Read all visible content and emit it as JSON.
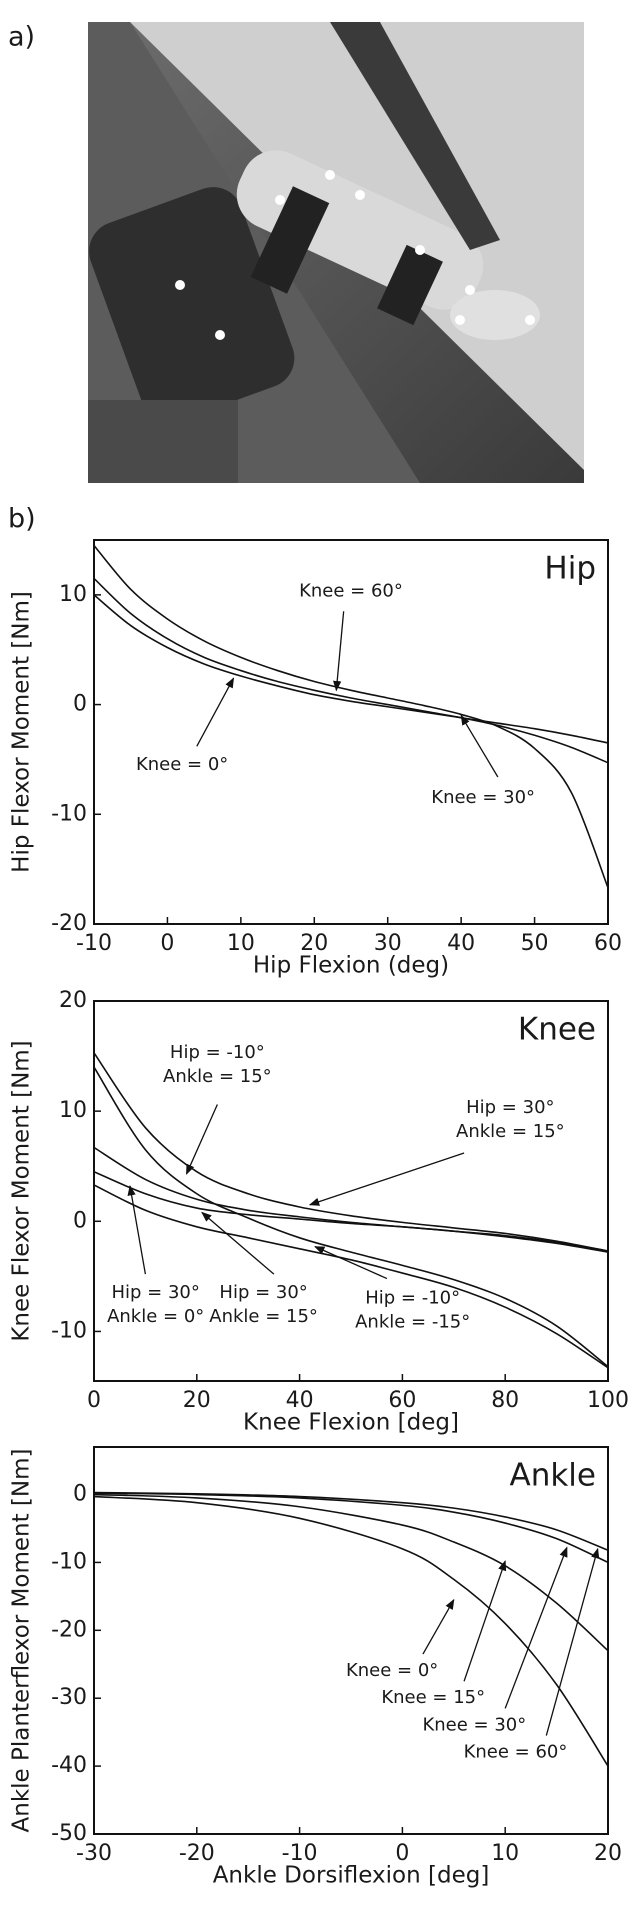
{
  "panel_labels": [
    "a)",
    "b)"
  ],
  "chart_data": [
    {
      "type": "line",
      "title": "Hip",
      "xlabel": "Hip Flexion (deg)",
      "ylabel": "Hip Flexor Moment [Nm]",
      "xlim": [
        -10,
        60
      ],
      "ylim": [
        -20,
        15
      ],
      "xticks": [
        -10,
        0,
        10,
        20,
        30,
        40,
        50,
        60
      ],
      "yticks": [
        -20,
        -10,
        0,
        10
      ],
      "x": [
        -10,
        -5,
        0,
        5,
        10,
        15,
        20,
        25,
        30,
        35,
        40,
        45,
        50,
        55,
        60
      ],
      "series": [
        {
          "color": "#111111",
          "values": [
            14.5,
            10.5,
            7.8,
            5.8,
            4.3,
            3.1,
            2.1,
            1.3,
            0.6,
            -0.1,
            -0.9,
            -2.0,
            -4.0,
            -8.0,
            -16.7
          ]
        },
        {
          "color": "#111111",
          "values": [
            11.5,
            8.3,
            6.0,
            4.3,
            3.1,
            2.1,
            1.3,
            0.6,
            0.0,
            -0.6,
            -1.2,
            -1.9,
            -2.8,
            -3.9,
            -5.3
          ]
        },
        {
          "color": "#111111",
          "values": [
            10.0,
            7.2,
            5.2,
            3.7,
            2.6,
            1.7,
            0.9,
            0.3,
            -0.2,
            -0.7,
            -1.2,
            -1.7,
            -2.2,
            -2.8,
            -3.5
          ]
        }
      ],
      "annotations": [
        {
          "text": [
            "Knee = 60°"
          ]
        },
        {
          "text": [
            "Knee = 0°"
          ]
        },
        {
          "text": [
            "Knee = 30°"
          ]
        }
      ]
    },
    {
      "type": "line",
      "title": "Knee",
      "xlabel": "Knee Flexion [deg]",
      "ylabel": "Knee Flexor Moment [Nm]",
      "xlim": [
        0,
        100
      ],
      "ylim": [
        -14.5,
        20
      ],
      "xticks": [
        0,
        20,
        40,
        60,
        80,
        100
      ],
      "yticks": [
        -10,
        0,
        10,
        20
      ],
      "x": [
        0,
        10,
        20,
        30,
        40,
        50,
        60,
        70,
        80,
        90,
        100
      ],
      "series": [
        {
          "color": "#111111",
          "values": [
            15.3,
            8.5,
            4.5,
            2.5,
            1.3,
            0.5,
            -0.1,
            -0.6,
            -1.1,
            -1.8,
            -2.7
          ]
        },
        {
          "color": "#111111",
          "values": [
            14.0,
            6.5,
            2.5,
            0.3,
            -1.5,
            -2.8,
            -4.0,
            -5.3,
            -7.0,
            -9.5,
            -13.2
          ]
        },
        {
          "color": "#111111",
          "values": [
            6.7,
            3.8,
            2.0,
            1.0,
            0.4,
            -0.1,
            -0.5,
            -0.9,
            -1.4,
            -2.0,
            -2.8
          ]
        },
        {
          "color": "#111111",
          "values": [
            4.5,
            2.5,
            1.2,
            0.6,
            0.2,
            -0.2,
            -0.5,
            -0.9,
            -1.3,
            -1.9,
            -2.7
          ]
        },
        {
          "color": "#111111",
          "values": [
            3.3,
            1.0,
            -0.5,
            -1.5,
            -2.5,
            -3.5,
            -4.7,
            -6.0,
            -7.8,
            -10.2,
            -13.3
          ]
        }
      ],
      "annotations": [
        {
          "text": [
            "Hip = -10°",
            "Ankle = 15°"
          ]
        },
        {
          "text": [
            "Hip = 30°",
            "Ankle = 15°"
          ]
        },
        {
          "text": [
            "Hip = 30°",
            "Ankle = 0°"
          ]
        },
        {
          "text": [
            "Hip = 30°",
            "Ankle = 15°"
          ]
        },
        {
          "text": [
            "Hip = -10°",
            "Ankle = -15°"
          ]
        }
      ]
    },
    {
      "type": "line",
      "title": "Ankle",
      "xlabel": "Ankle Dorsiflexion [deg]",
      "ylabel": "Ankle Planterflexor Moment [Nm]",
      "xlim": [
        -30,
        20
      ],
      "ylim": [
        -50,
        7
      ],
      "xticks": [
        -30,
        -20,
        -10,
        0,
        10,
        20
      ],
      "yticks": [
        -50,
        -40,
        -30,
        -20,
        -10,
        0
      ],
      "x": [
        -30,
        -20,
        -10,
        0,
        5,
        10,
        15,
        20
      ],
      "series": [
        {
          "color": "#111111",
          "values": [
            0.3,
            0.1,
            -0.3,
            -1.2,
            -2.0,
            -3.3,
            -5.2,
            -8.2
          ]
        },
        {
          "color": "#111111",
          "values": [
            0.2,
            0.0,
            -0.5,
            -1.6,
            -2.6,
            -4.2,
            -6.5,
            -10.0
          ]
        },
        {
          "color": "#111111",
          "values": [
            0.0,
            -0.5,
            -1.8,
            -4.5,
            -7.0,
            -10.5,
            -16.0,
            -23.0
          ]
        },
        {
          "color": "#111111",
          "values": [
            -0.3,
            -1.2,
            -3.5,
            -8.0,
            -12.5,
            -19.0,
            -28.0,
            -40.0
          ]
        }
      ],
      "annotations": [
        {
          "text": [
            "Knee = 0°"
          ]
        },
        {
          "text": [
            "Knee = 15°"
          ]
        },
        {
          "text": [
            "Knee = 30°"
          ]
        },
        {
          "text": [
            "Knee = 60°"
          ]
        }
      ]
    }
  ]
}
